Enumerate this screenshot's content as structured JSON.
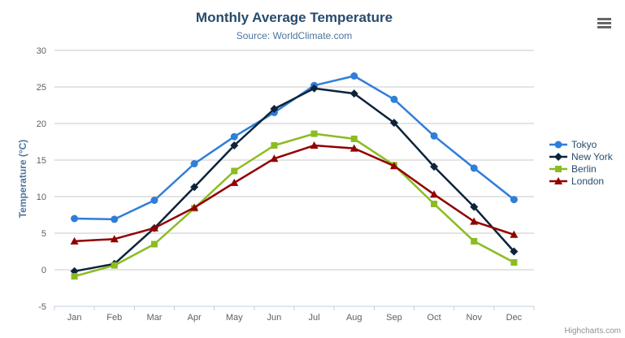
{
  "header": {
    "title": "Monthly Average Temperature",
    "subtitle": "Source: WorldClimate.com"
  },
  "icons": {
    "context_menu": "hamburger-menu-icon"
  },
  "credits": {
    "label": "Highcharts.com"
  },
  "colors": {
    "title_text": "#274b6d",
    "subtitle_text": "#4d759e",
    "axis_title_text": "#4d759e",
    "axis_label_text": "#606060",
    "grid_line": "#C8C8C8",
    "axis_line": "#C0D0E0",
    "legend_text": "#274b6d",
    "credits_text": "#909090",
    "series_tokyo": "#2f7ed8",
    "series_new_york": "#0d233a",
    "series_berlin": "#8bbc21",
    "series_london": "#910000"
  },
  "chart_data": {
    "type": "line",
    "title": "Monthly Average Temperature",
    "subtitle": "Source: WorldClimate.com",
    "xlabel": "",
    "ylabel": "Temperature (°C)",
    "ylim": [
      -5,
      30
    ],
    "ytick_interval": 5,
    "grid": true,
    "legend_position": "right",
    "categories": [
      "Jan",
      "Feb",
      "Mar",
      "Apr",
      "May",
      "Jun",
      "Jul",
      "Aug",
      "Sep",
      "Oct",
      "Nov",
      "Dec"
    ],
    "series": [
      {
        "name": "Tokyo",
        "color": "#2f7ed8",
        "marker": "circle",
        "values": [
          7.0,
          6.9,
          9.5,
          14.5,
          18.2,
          21.5,
          25.2,
          26.5,
          23.3,
          18.3,
          13.9,
          9.6
        ]
      },
      {
        "name": "New York",
        "color": "#0d233a",
        "marker": "diamond",
        "values": [
          -0.2,
          0.8,
          5.7,
          11.3,
          17.0,
          22.0,
          24.8,
          24.1,
          20.1,
          14.1,
          8.6,
          2.5
        ]
      },
      {
        "name": "Berlin",
        "color": "#8bbc21",
        "marker": "square",
        "values": [
          -0.9,
          0.6,
          3.5,
          8.4,
          13.5,
          17.0,
          18.6,
          17.9,
          14.3,
          9.0,
          3.9,
          1.0
        ]
      },
      {
        "name": "London",
        "color": "#910000",
        "marker": "triangle",
        "values": [
          3.9,
          4.2,
          5.7,
          8.5,
          11.9,
          15.2,
          17.0,
          16.6,
          14.2,
          10.3,
          6.6,
          4.8
        ]
      }
    ]
  }
}
